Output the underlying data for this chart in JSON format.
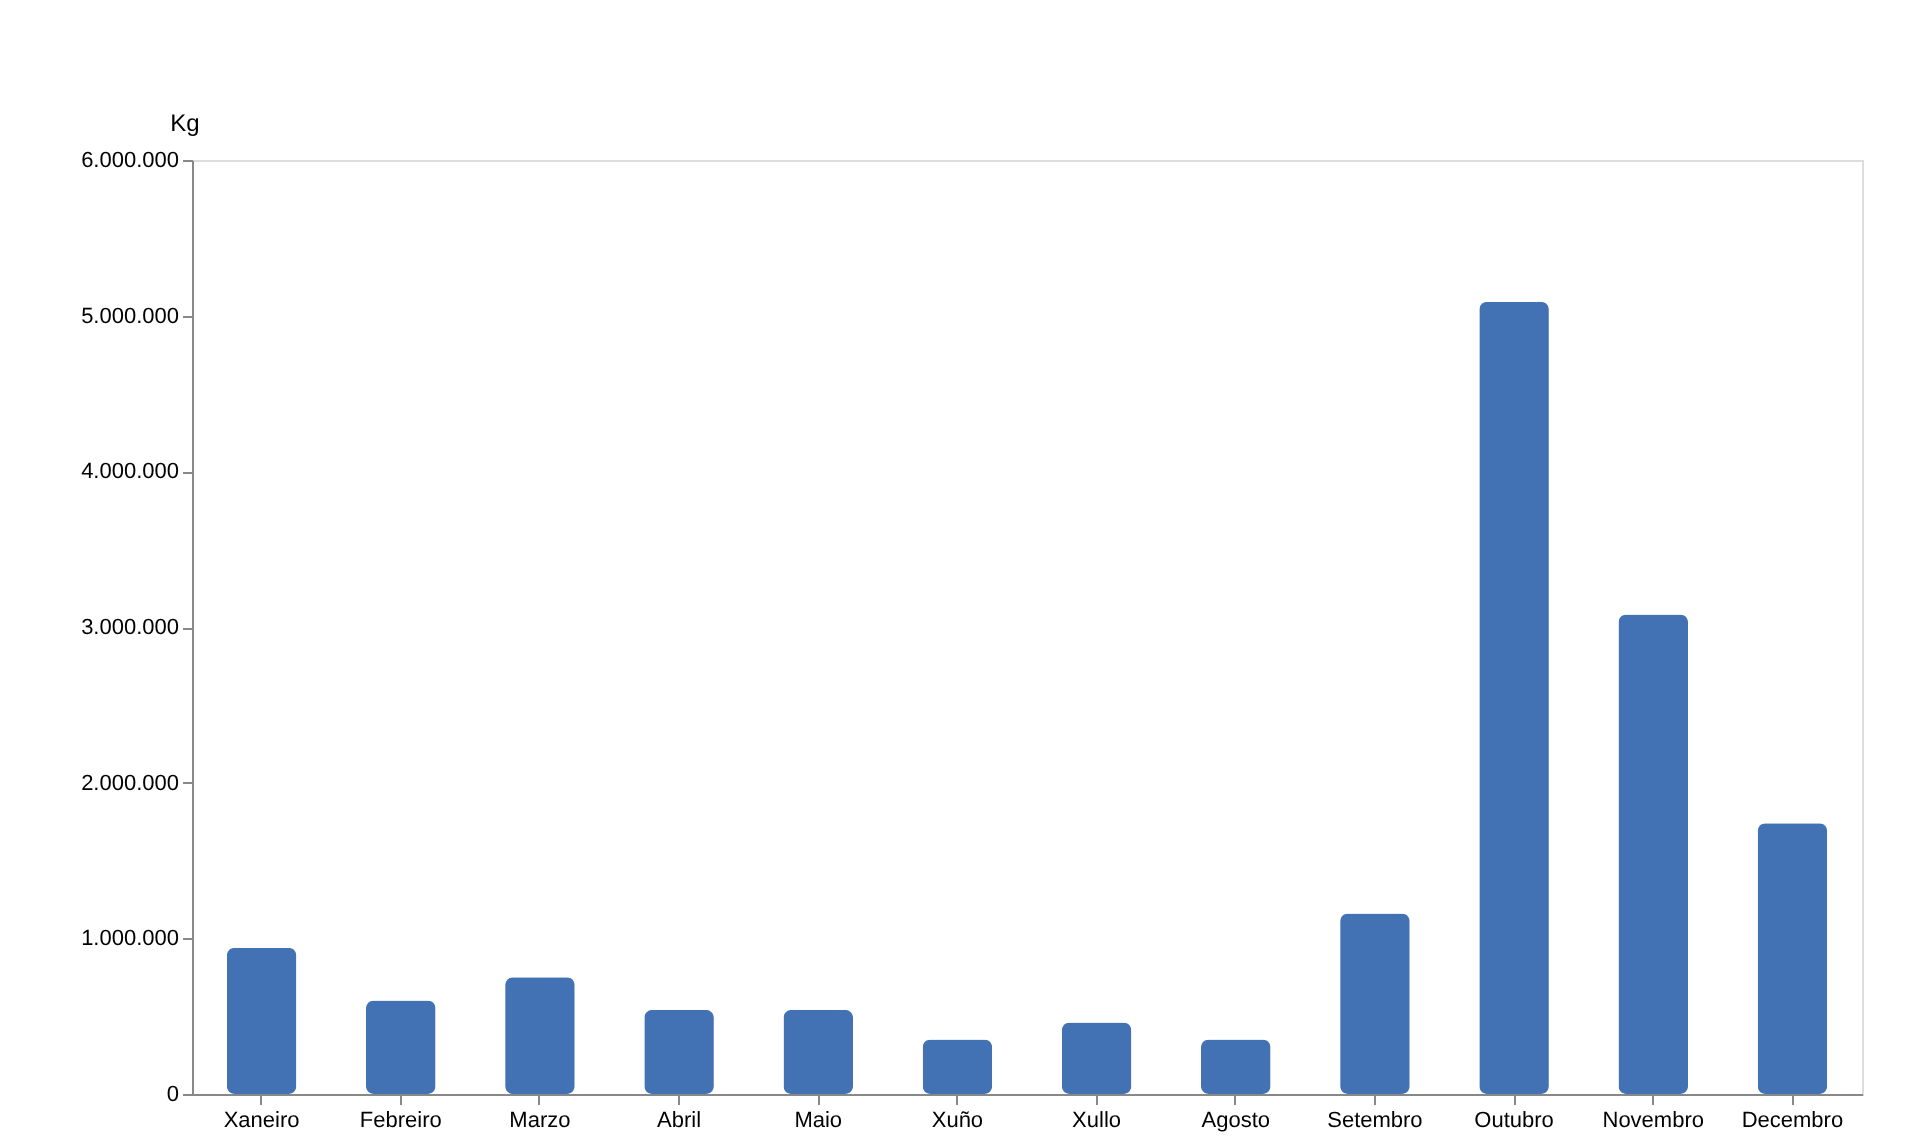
{
  "chart_data": {
    "type": "bar",
    "ylabel": "Kg",
    "categories": [
      "Xaneiro",
      "Febreiro",
      "Marzo",
      "Abril",
      "Maio",
      "Xuño",
      "Xullo",
      "Agosto",
      "Setembro",
      "Outubro",
      "Novembro",
      "Decembro"
    ],
    "values": [
      940000,
      600000,
      750000,
      540000,
      540000,
      350000,
      460000,
      350000,
      1160000,
      5090000,
      3080000,
      1740000
    ],
    "color": "#4272b4",
    "ylim": [
      0,
      6000000
    ],
    "yticks": [
      0,
      {
        "value": 1000000,
        "label": "1.000.000"
      },
      {
        "value": 2000000,
        "label": "2.000.000"
      },
      {
        "value": 3000000,
        "label": "3.000.000"
      },
      {
        "value": 4000000,
        "label": "4.000.000"
      },
      {
        "value": 5000000,
        "label": "5.000.000"
      },
      {
        "value": 6000000,
        "label": "6.000.000"
      }
    ],
    "grid": false
  }
}
